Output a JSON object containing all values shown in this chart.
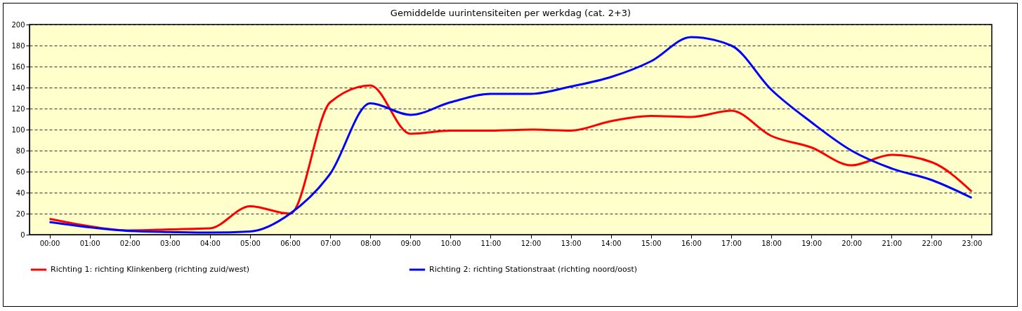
{
  "chart_data": {
    "type": "line",
    "title": "Gemiddelde uurintensiteiten per werkdag (cat. 2+3)",
    "categories": [
      "00:00",
      "01:00",
      "02:00",
      "03:00",
      "04:00",
      "05:00",
      "06:00",
      "07:00",
      "08:00",
      "09:00",
      "10:00",
      "11:00",
      "12:00",
      "13:00",
      "14:00",
      "15:00",
      "16:00",
      "17:00",
      "18:00",
      "19:00",
      "20:00",
      "21:00",
      "22:00",
      "23:00"
    ],
    "series": [
      {
        "name": "Richting 1: richting Klinkenberg (richting zuid/west)",
        "color": "#ff0000",
        "values": [
          15,
          8,
          4,
          5,
          6,
          27,
          20,
          126,
          142,
          96,
          99,
          99,
          100,
          99,
          108,
          113,
          112,
          118,
          94,
          83,
          66,
          76,
          69,
          41
        ]
      },
      {
        "name": "Richting 2: richting Stationstraat (richting noord/oost)",
        "color": "#0000ff",
        "values": [
          12,
          7,
          3.5,
          2.5,
          2,
          3,
          20,
          58,
          125,
          114,
          126,
          134,
          134,
          141,
          150,
          165,
          188,
          180,
          138,
          107,
          80,
          63,
          52,
          35
        ]
      }
    ],
    "ylim": [
      0,
      200
    ],
    "yticks": [
      0,
      20,
      40,
      60,
      80,
      100,
      120,
      140,
      160,
      180,
      200
    ],
    "grid": "y",
    "legend": "bottom",
    "line_style": "solid",
    "marker": "none"
  }
}
